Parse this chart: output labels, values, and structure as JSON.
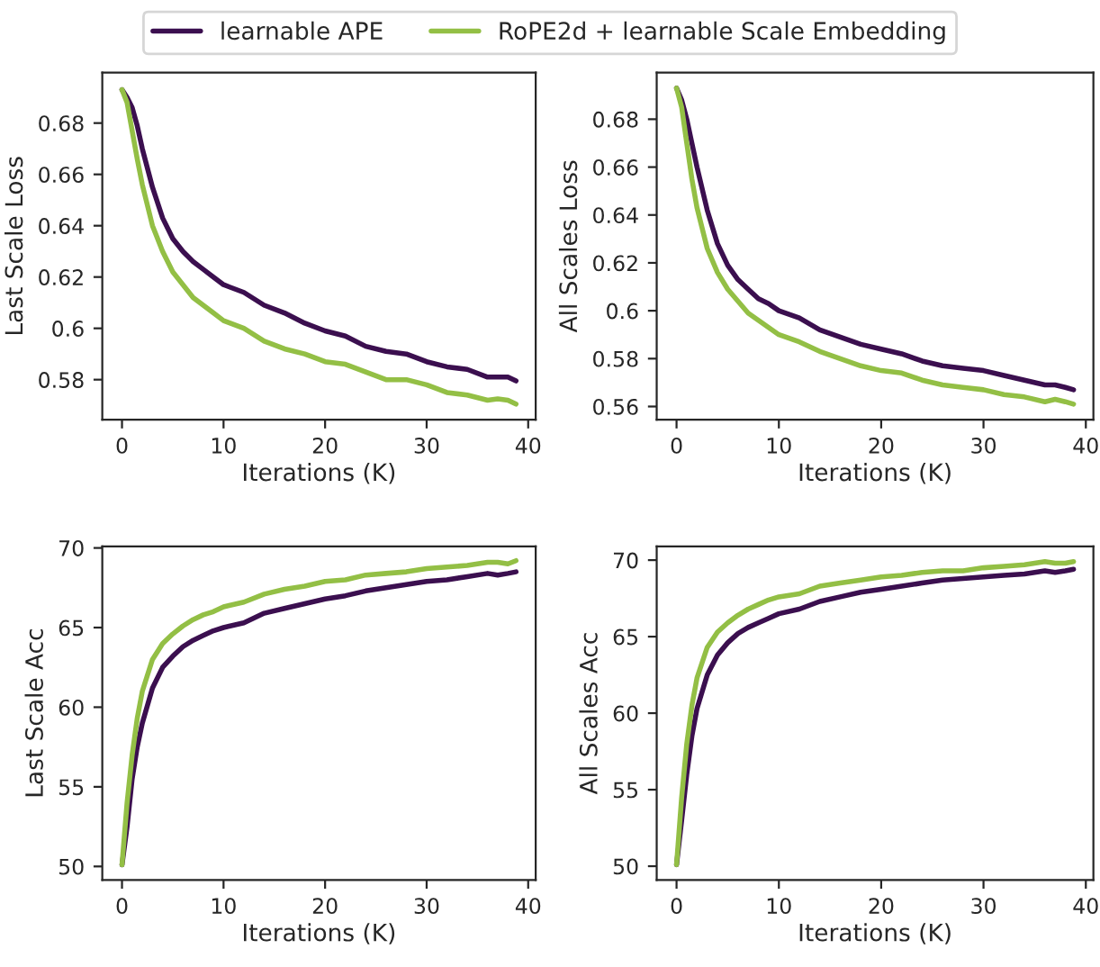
{
  "chart_data": [
    {
      "type": "line",
      "xlabel": "Iterations (K)",
      "ylabel": "Last Scale Loss",
      "legend": "top",
      "xlim": [
        -1.94,
        40.74
      ],
      "xticks": [
        0,
        10,
        20,
        30,
        40
      ],
      "ylim": [
        0.5644,
        0.6997
      ],
      "yticks": [
        0.58,
        0.6,
        0.62,
        0.64,
        0.66,
        0.68
      ],
      "x": [
        0,
        0.5,
        1,
        1.5,
        2,
        3,
        4,
        5,
        6,
        7,
        8,
        9,
        10,
        12,
        14,
        16,
        18,
        20,
        22,
        24,
        26,
        28,
        30,
        32,
        34,
        36,
        37,
        38,
        38.8
      ],
      "series": [
        {
          "name": "learnable APE",
          "color": "#3b0f4f",
          "values": [
            0.693,
            0.69,
            0.686,
            0.679,
            0.67,
            0.655,
            0.643,
            0.635,
            0.63,
            0.626,
            0.623,
            0.62,
            0.617,
            0.614,
            0.609,
            0.606,
            0.602,
            0.599,
            0.597,
            0.593,
            0.591,
            0.59,
            0.587,
            0.585,
            0.584,
            0.581,
            0.581,
            0.581,
            0.5795
          ]
        },
        {
          "name": "RoPE2d + learnable Scale Embedding",
          "color": "#93bf45",
          "values": [
            0.693,
            0.688,
            0.677,
            0.666,
            0.656,
            0.64,
            0.63,
            0.622,
            0.617,
            0.612,
            0.609,
            0.606,
            0.603,
            0.6,
            0.595,
            0.592,
            0.59,
            0.587,
            0.586,
            0.583,
            0.58,
            0.58,
            0.578,
            0.575,
            0.574,
            0.572,
            0.5725,
            0.572,
            0.5705
          ]
        }
      ]
    },
    {
      "type": "line",
      "xlabel": "Iterations (K)",
      "ylabel": "All Scales Loss",
      "xlim": [
        -1.94,
        40.74
      ],
      "xticks": [
        0,
        10,
        20,
        30,
        40
      ],
      "ylim": [
        0.5545,
        0.6995
      ],
      "yticks": [
        0.56,
        0.58,
        0.6,
        0.62,
        0.64,
        0.66,
        0.68
      ],
      "x": [
        0,
        0.5,
        1,
        1.5,
        2,
        3,
        4,
        5,
        6,
        7,
        8,
        9,
        10,
        12,
        14,
        16,
        18,
        20,
        22,
        24,
        26,
        28,
        30,
        32,
        34,
        36,
        37,
        38,
        38.8
      ],
      "series": [
        {
          "color": "#3b0f4f",
          "values": [
            0.693,
            0.688,
            0.68,
            0.67,
            0.66,
            0.642,
            0.628,
            0.619,
            0.613,
            0.609,
            0.605,
            0.603,
            0.6,
            0.597,
            0.592,
            0.589,
            0.586,
            0.584,
            0.582,
            0.579,
            0.577,
            0.576,
            0.575,
            0.573,
            0.571,
            0.569,
            0.569,
            0.568,
            0.567
          ]
        },
        {
          "color": "#93bf45",
          "values": [
            0.693,
            0.685,
            0.67,
            0.655,
            0.643,
            0.626,
            0.616,
            0.609,
            0.604,
            0.599,
            0.596,
            0.593,
            0.59,
            0.587,
            0.583,
            0.58,
            0.577,
            0.575,
            0.574,
            0.571,
            0.569,
            0.568,
            0.567,
            0.565,
            0.564,
            0.562,
            0.563,
            0.562,
            0.561
          ]
        }
      ]
    },
    {
      "type": "line",
      "xlabel": "Iterations (K)",
      "ylabel": "Last Scale Acc",
      "xlim": [
        -1.94,
        40.74
      ],
      "xticks": [
        0,
        10,
        20,
        30,
        40
      ],
      "ylim": [
        49.15,
        70.1
      ],
      "yticks": [
        50,
        55,
        60,
        65,
        70
      ],
      "x": [
        0,
        0.5,
        1,
        1.5,
        2,
        3,
        4,
        5,
        6,
        7,
        8,
        9,
        10,
        12,
        14,
        16,
        18,
        20,
        22,
        24,
        26,
        28,
        30,
        32,
        34,
        36,
        37,
        38,
        38.8
      ],
      "series": [
        {
          "color": "#3b0f4f",
          "values": [
            50.1,
            52.5,
            55.5,
            57.5,
            59.0,
            61.2,
            62.5,
            63.2,
            63.8,
            64.2,
            64.5,
            64.8,
            65.0,
            65.3,
            65.9,
            66.2,
            66.5,
            66.8,
            67.0,
            67.3,
            67.5,
            67.7,
            67.9,
            68.0,
            68.2,
            68.4,
            68.3,
            68.4,
            68.5
          ]
        },
        {
          "color": "#93bf45",
          "values": [
            50.1,
            54.0,
            57.0,
            59.3,
            61.0,
            63.0,
            64.0,
            64.6,
            65.1,
            65.5,
            65.8,
            66.0,
            66.3,
            66.6,
            67.1,
            67.4,
            67.6,
            67.9,
            68.0,
            68.3,
            68.4,
            68.5,
            68.7,
            68.8,
            68.9,
            69.1,
            69.1,
            69.0,
            69.2
          ]
        }
      ]
    },
    {
      "type": "line",
      "xlabel": "Iterations (K)",
      "ylabel": "All Scales Acc",
      "xlim": [
        -1.94,
        40.74
      ],
      "xticks": [
        0,
        10,
        20,
        30,
        40
      ],
      "ylim": [
        49.1,
        70.9
      ],
      "yticks": [
        50,
        55,
        60,
        65,
        70
      ],
      "x": [
        0,
        0.5,
        1,
        1.5,
        2,
        3,
        4,
        5,
        6,
        7,
        8,
        9,
        10,
        12,
        14,
        16,
        18,
        20,
        22,
        24,
        26,
        28,
        30,
        32,
        34,
        36,
        37,
        38,
        38.8
      ],
      "series": [
        {
          "color": "#3b0f4f",
          "values": [
            50.1,
            53.0,
            56.0,
            58.5,
            60.3,
            62.5,
            63.8,
            64.6,
            65.2,
            65.6,
            65.9,
            66.2,
            66.5,
            66.8,
            67.3,
            67.6,
            67.9,
            68.1,
            68.3,
            68.5,
            68.7,
            68.8,
            68.9,
            69.0,
            69.1,
            69.3,
            69.2,
            69.3,
            69.4
          ]
        },
        {
          "color": "#93bf45",
          "values": [
            50.1,
            54.5,
            58.0,
            60.5,
            62.3,
            64.3,
            65.3,
            65.9,
            66.4,
            66.8,
            67.1,
            67.4,
            67.6,
            67.8,
            68.3,
            68.5,
            68.7,
            68.9,
            69.0,
            69.2,
            69.3,
            69.3,
            69.5,
            69.6,
            69.7,
            69.9,
            69.8,
            69.8,
            69.9
          ]
        }
      ]
    }
  ]
}
